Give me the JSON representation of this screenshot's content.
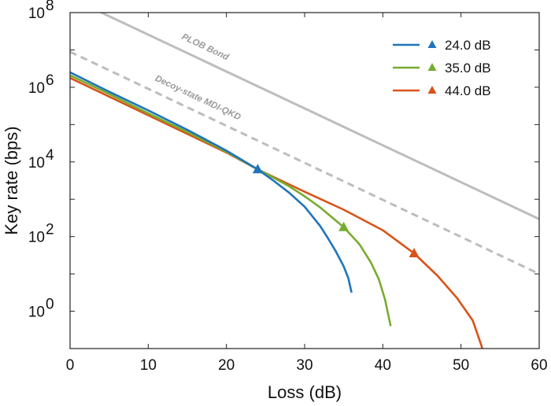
{
  "chart_data": {
    "type": "line",
    "xlabel": "Loss (dB)",
    "ylabel": "Key rate (bps)",
    "xlim": [
      0,
      60
    ],
    "ylim_log10": [
      -1,
      8
    ],
    "y_scale": "log",
    "x_ticks": [
      "0",
      "10",
      "20",
      "30",
      "40",
      "50",
      "60"
    ],
    "y_ticks": [
      {
        "base": "10",
        "exp": "0",
        "log": 0
      },
      {
        "base": "10",
        "exp": "2",
        "log": 2
      },
      {
        "base": "10",
        "exp": "4",
        "log": 4
      },
      {
        "base": "10",
        "exp": "6",
        "log": 6
      },
      {
        "base": "10",
        "exp": "8",
        "log": 8
      }
    ],
    "legend_position": "top-right",
    "series": [
      {
        "name": "24.0 dB",
        "color": "#1F74BC",
        "marker": {
          "x": 24.0,
          "log10_y": 3.8
        },
        "points": [
          [
            0,
            6.4
          ],
          [
            5,
            5.88
          ],
          [
            10,
            5.38
          ],
          [
            15,
            4.86
          ],
          [
            20,
            4.3
          ],
          [
            24,
            3.8
          ],
          [
            26,
            3.5
          ],
          [
            28,
            3.18
          ],
          [
            30,
            2.8
          ],
          [
            32,
            2.28
          ],
          [
            33,
            1.95
          ],
          [
            34,
            1.6
          ],
          [
            35,
            1.2
          ],
          [
            35.6,
            0.88
          ],
          [
            36,
            0.5
          ]
        ]
      },
      {
        "name": "35.0 dB",
        "color": "#77AC30",
        "marker": {
          "x": 35.0,
          "log10_y": 2.25
        },
        "points": [
          [
            0,
            6.32
          ],
          [
            5,
            5.82
          ],
          [
            10,
            5.3
          ],
          [
            15,
            4.8
          ],
          [
            20,
            4.27
          ],
          [
            24,
            3.8
          ],
          [
            26,
            3.58
          ],
          [
            28,
            3.35
          ],
          [
            30,
            3.08
          ],
          [
            32,
            2.78
          ],
          [
            35,
            2.25
          ],
          [
            37,
            1.8
          ],
          [
            38.5,
            1.3
          ],
          [
            39.5,
            0.85
          ],
          [
            40.3,
            0.3
          ],
          [
            40.8,
            -0.2
          ],
          [
            41,
            -0.4
          ]
        ]
      },
      {
        "name": "44.0 dB",
        "color": "#D95319",
        "marker": {
          "x": 44.0,
          "log10_y": 1.55
        },
        "points": [
          [
            0,
            6.25
          ],
          [
            5,
            5.75
          ],
          [
            10,
            5.25
          ],
          [
            15,
            4.75
          ],
          [
            20,
            4.25
          ],
          [
            24,
            3.8
          ],
          [
            27,
            3.5
          ],
          [
            30,
            3.2
          ],
          [
            35,
            2.72
          ],
          [
            40,
            2.17
          ],
          [
            44,
            1.55
          ],
          [
            47,
            0.95
          ],
          [
            49.5,
            0.35
          ],
          [
            51.5,
            -0.25
          ],
          [
            52.5,
            -0.85
          ],
          [
            52.8,
            -1.05
          ]
        ]
      }
    ],
    "reference_lines": [
      {
        "label": "PLOB Bond",
        "color": "#BDBDBD",
        "style": "solid",
        "points": [
          [
            3.5,
            8.05
          ],
          [
            60,
            2.47
          ]
        ]
      },
      {
        "label": "Decoy-state MDI-QKD",
        "color": "#BDBDBD",
        "style": "dashed",
        "points": [
          [
            0,
            6.95
          ],
          [
            60,
            1.0
          ]
        ]
      }
    ]
  }
}
